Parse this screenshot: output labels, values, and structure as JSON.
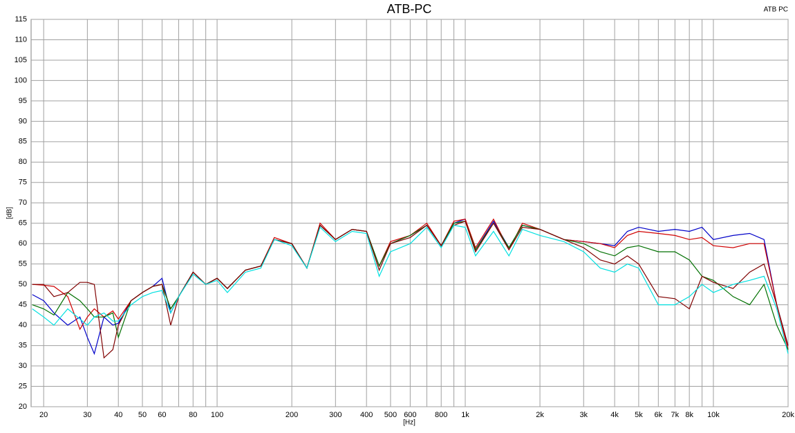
{
  "chart_data": {
    "type": "line",
    "title": "ATB-PC",
    "corner_label": "ATB PC",
    "xlabel": "[Hz]",
    "ylabel": "[dB]",
    "xscale": "log",
    "grid": true,
    "xlim": [
      17.8,
      20000
    ],
    "ylim": [
      20,
      115
    ],
    "yticks": [
      20,
      25,
      30,
      35,
      40,
      45,
      50,
      55,
      60,
      65,
      70,
      75,
      80,
      85,
      90,
      95,
      100,
      105,
      110,
      115
    ],
    "xticks": [
      20,
      30,
      40,
      50,
      60,
      80,
      100,
      200,
      300,
      400,
      500,
      600,
      800,
      {
        "value": 1000,
        "label": "1k"
      },
      {
        "value": 2000,
        "label": "2k"
      },
      {
        "value": 3000,
        "label": "3k"
      },
      {
        "value": 4000,
        "label": "4k"
      },
      {
        "value": 5000,
        "label": "5k"
      },
      {
        "value": 6000,
        "label": "6k"
      },
      {
        "value": 7000,
        "label": "7k"
      },
      {
        "value": 8000,
        "label": "8k"
      },
      {
        "value": 10000,
        "label": "10k"
      },
      {
        "value": 20000,
        "label": "20k"
      }
    ],
    "xminor": [
      70,
      90,
      700,
      900,
      9000
    ],
    "x": [
      18,
      20,
      22,
      25,
      28,
      30,
      32,
      35,
      38,
      40,
      45,
      50,
      55,
      60,
      65,
      70,
      80,
      90,
      100,
      110,
      130,
      150,
      170,
      200,
      230,
      260,
      300,
      350,
      400,
      450,
      500,
      600,
      700,
      800,
      900,
      1000,
      1100,
      1300,
      1500,
      1700,
      2000,
      2500,
      3000,
      3500,
      4000,
      4500,
      5000,
      6000,
      7000,
      8000,
      9000,
      10000,
      12000,
      14000,
      16000,
      18000,
      20000
    ],
    "series": [
      {
        "color": "#0000c8",
        "values": [
          47.5,
          46,
          43,
          40,
          42,
          37,
          33,
          42,
          40,
          40.5,
          46,
          48,
          49.5,
          51.5,
          43,
          47,
          53,
          50,
          51.5,
          49,
          53.5,
          54.5,
          61,
          60,
          54,
          64.5,
          61,
          63.5,
          63,
          54.5,
          60,
          62,
          64.5,
          59.5,
          65,
          66,
          58.5,
          65.5,
          59,
          64.5,
          63.5,
          61,
          60.5,
          60,
          59.5,
          63,
          64,
          63,
          63.5,
          63,
          64,
          61,
          62,
          62.5,
          61,
          45,
          35
        ]
      },
      {
        "color": "#d00000",
        "values": [
          50,
          49.8,
          49.5,
          47,
          39,
          42,
          44,
          42,
          43.5,
          41.5,
          46,
          48,
          49.5,
          50,
          44,
          47,
          53,
          50,
          51.5,
          49,
          53.5,
          54.5,
          61.5,
          60,
          54,
          65,
          61,
          63.5,
          63,
          54.5,
          60.5,
          62,
          65,
          59.5,
          65.5,
          66,
          59,
          66,
          58.5,
          65,
          63.5,
          61,
          60.5,
          60,
          59,
          62,
          63,
          62.5,
          62,
          61,
          61.5,
          59.5,
          59,
          60,
          60,
          45,
          34
        ]
      },
      {
        "color": "#007000",
        "values": [
          45,
          44,
          42.5,
          48,
          46,
          44,
          42,
          42,
          43,
          37,
          46,
          48,
          49.5,
          50,
          44,
          47,
          53,
          50,
          51.5,
          49,
          53.5,
          54.5,
          61,
          60,
          54,
          64.5,
          61,
          63.5,
          63,
          54.5,
          60,
          62,
          64.5,
          59.5,
          65,
          65.5,
          58.5,
          65,
          59,
          64.5,
          63.5,
          61,
          60,
          58,
          57,
          59,
          59.5,
          58,
          58,
          56,
          52,
          51,
          47,
          45,
          50,
          40,
          34
        ]
      },
      {
        "color": "#800000",
        "values": [
          50,
          50,
          47,
          48,
          50.5,
          50.5,
          50,
          32,
          34,
          40,
          46,
          48,
          49.5,
          50,
          40,
          47,
          53,
          50,
          51.5,
          49,
          53.5,
          54.5,
          61,
          60,
          54,
          64.5,
          61,
          63.5,
          63,
          53.5,
          60,
          61.5,
          64.5,
          59.5,
          64.5,
          65.5,
          58,
          65,
          58.5,
          64,
          63.5,
          61,
          59,
          56,
          55,
          57,
          55,
          47,
          46.5,
          44,
          52,
          50.5,
          49,
          53,
          55,
          45,
          35
        ]
      },
      {
        "color": "#00e0e0",
        "values": [
          44,
          42,
          40,
          44,
          41.5,
          40,
          42,
          43,
          41,
          41,
          45,
          47,
          48,
          48.5,
          43,
          47,
          52.5,
          50,
          51,
          48,
          53,
          54,
          61,
          59.5,
          54,
          64,
          60.5,
          63,
          62.5,
          52,
          58,
          60,
          64,
          59,
          64.5,
          64,
          57,
          63,
          57,
          63.5,
          62,
          60.5,
          58,
          54,
          53,
          55,
          54,
          45,
          45,
          47,
          50,
          48,
          50,
          51,
          52,
          44,
          33
        ]
      }
    ]
  }
}
